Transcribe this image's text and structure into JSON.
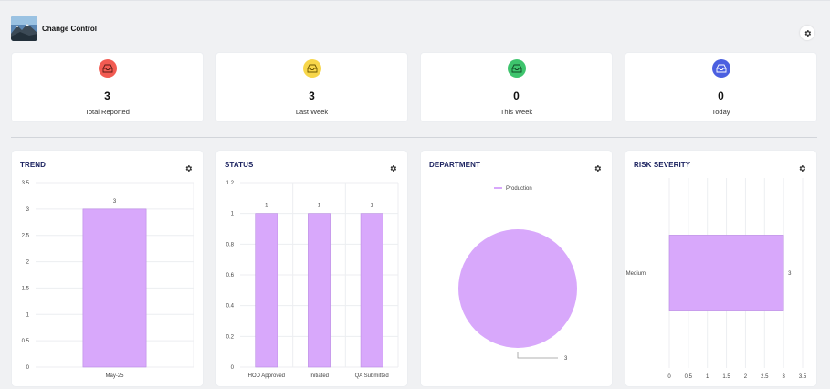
{
  "header": {
    "title": "Change Control",
    "logo": "mountain-landscape-logo"
  },
  "colors": {
    "bar": "#d8a8fb",
    "bar_stroke": "#b98ae3",
    "card_bg": "#ffffff",
    "page_bg": "#f0f1f3",
    "title": "#1c2360",
    "red": "#f25b52",
    "yellow": "#f7d64a",
    "green": "#3ec46d",
    "blue": "#4b5fe0"
  },
  "stats": [
    {
      "value": "3",
      "label": "Total Reported",
      "icon": "inbox-icon",
      "color": "red"
    },
    {
      "value": "3",
      "label": "Last Week",
      "icon": "inbox-icon",
      "color": "yellow"
    },
    {
      "value": "0",
      "label": "This Week",
      "icon": "inbox-icon",
      "color": "green"
    },
    {
      "value": "0",
      "label": "Today",
      "icon": "inbox-icon",
      "color": "blue"
    }
  ],
  "charts": {
    "trend": {
      "title": "TREND"
    },
    "status": {
      "title": "STATUS"
    },
    "department": {
      "title": "DEPARTMENT"
    },
    "risk": {
      "title": "RISK SEVERITY"
    }
  },
  "chart_data": [
    {
      "type": "bar",
      "title": "TREND",
      "categories": [
        "May-25"
      ],
      "values": [
        3
      ],
      "data_labels": [
        "3"
      ],
      "ylim": [
        0,
        3.5
      ],
      "yticks": [
        "0",
        "0.5",
        "1",
        "1.5",
        "2",
        "2.5",
        "3",
        "3.5"
      ],
      "grid": true
    },
    {
      "type": "bar",
      "title": "STATUS",
      "categories": [
        "HOD Approved",
        "Initiated",
        "QA Submitted"
      ],
      "values": [
        1,
        1,
        1
      ],
      "data_labels": [
        "1",
        "1",
        "1"
      ],
      "ylim": [
        0,
        1.2
      ],
      "yticks": [
        "0",
        "0.2",
        "0.4",
        "0.6",
        "0.8",
        "1",
        "1.2"
      ],
      "grid": true
    },
    {
      "type": "pie",
      "title": "DEPARTMENT",
      "categories": [
        "Production"
      ],
      "values": [
        3
      ],
      "data_labels": [
        "3"
      ],
      "legend": "top"
    },
    {
      "type": "bar",
      "orientation": "horizontal",
      "title": "RISK SEVERITY",
      "categories": [
        "Medium"
      ],
      "values": [
        3
      ],
      "data_labels": [
        "3"
      ],
      "xlim": [
        0,
        3.5
      ],
      "xticks": [
        "0",
        "0.5",
        "1",
        "1.5",
        "2",
        "2.5",
        "3",
        "3.5"
      ],
      "grid": true
    }
  ]
}
